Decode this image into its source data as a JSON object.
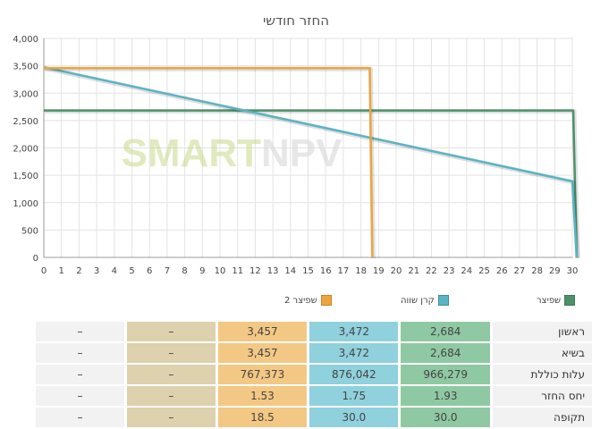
{
  "chart_data": {
    "type": "line",
    "title": "החזר חודשי",
    "watermark": [
      "SMART",
      "NPV"
    ],
    "xlim": [
      0,
      30
    ],
    "ylim": [
      0,
      4000
    ],
    "x_ticks": [
      0,
      1,
      2,
      3,
      4,
      5,
      6,
      7,
      8,
      9,
      10,
      11,
      12,
      13,
      14,
      15,
      16,
      17,
      18,
      19,
      20,
      21,
      22,
      23,
      24,
      25,
      26,
      27,
      28,
      29,
      30
    ],
    "y_ticks": [
      "0",
      "500",
      "1,000",
      "1,500",
      "2,000",
      "2,500",
      "3,000",
      "3,500",
      "4,000"
    ],
    "y_tick_values": [
      0,
      500,
      1000,
      1500,
      2000,
      2500,
      3000,
      3500,
      4000
    ],
    "grid": true,
    "legend_position": "bottom",
    "series": [
      {
        "name": "שפיצר",
        "color": "#4e9168",
        "points": [
          [
            0,
            2684
          ],
          [
            30.05,
            2684
          ],
          [
            30.25,
            0
          ]
        ]
      },
      {
        "name": "קרן שווה",
        "color": "#5ab4c4",
        "points": [
          [
            0,
            3472
          ],
          [
            30,
            1390
          ],
          [
            30.25,
            0
          ]
        ]
      },
      {
        "name": "שפיצר 2",
        "color": "#eba53e",
        "points": [
          [
            0,
            3457
          ],
          [
            18.5,
            3457
          ],
          [
            18.65,
            0
          ]
        ]
      }
    ]
  },
  "legend": [
    {
      "label": "שפיצר",
      "color": "#4e9168"
    },
    {
      "label": "קרן שווה",
      "color": "#5ab4c4"
    },
    {
      "label": "שפיצר 2",
      "color": "#eba53e"
    }
  ],
  "table": {
    "rows": [
      {
        "label": "ראשון",
        "values": [
          "2,684",
          "3,472",
          "3,457",
          "–",
          "–"
        ]
      },
      {
        "label": "בשיא",
        "values": [
          "2,684",
          "3,472",
          "3,457",
          "–",
          "–"
        ]
      },
      {
        "label": "עלות כוללת",
        "values": [
          "966,279",
          "876,042",
          "767,373",
          "–",
          "–"
        ]
      },
      {
        "label": "יחס החזר",
        "values": [
          "1.93",
          "1.75",
          "1.53",
          "–",
          "–"
        ]
      },
      {
        "label": "תקופה",
        "values": [
          "30.0",
          "30.0",
          "18.5",
          "–",
          "–"
        ]
      }
    ]
  }
}
